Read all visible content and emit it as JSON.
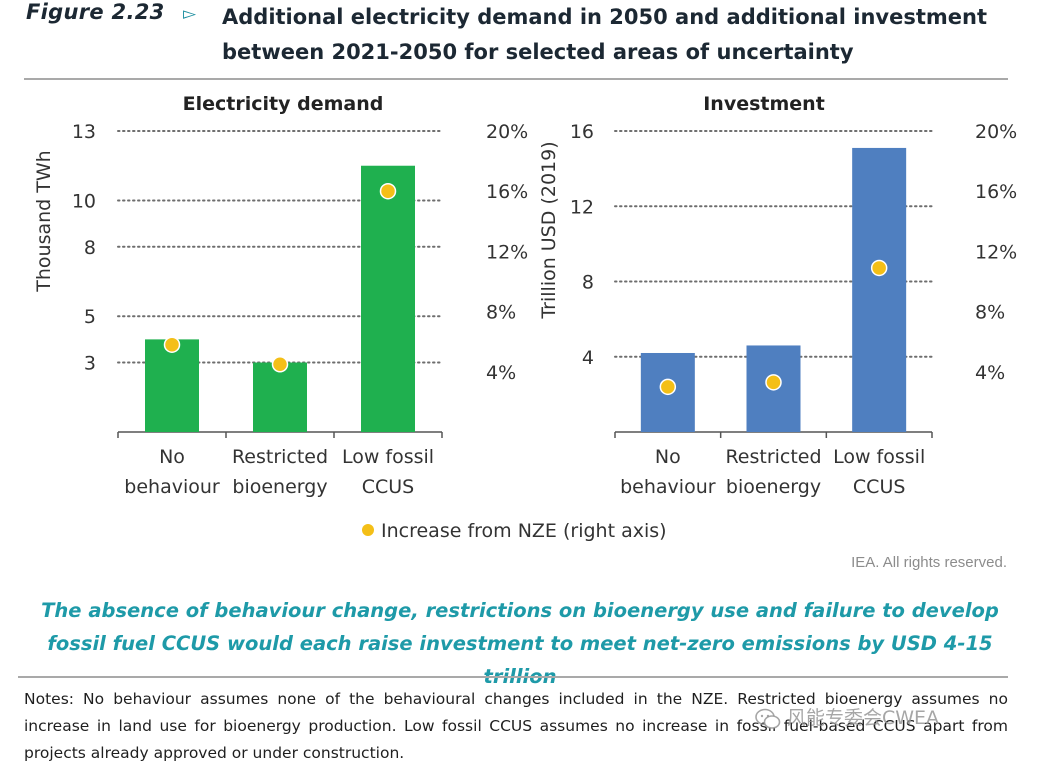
{
  "figure": {
    "label": "Figure 2.23",
    "arrow_icon": "triangle-right-outline",
    "title": "Additional electricity demand in 2050 and additional investment between 2021-2050 for selected areas of uncertainty"
  },
  "chart_data": [
    {
      "type": "bar",
      "title": "Electricity demand",
      "ylabel": "Thousand TWh",
      "categories": [
        "No behaviour",
        "Restricted bioenergy",
        "Low fossil CCUS"
      ],
      "category_lines": [
        [
          "No",
          "behaviour"
        ],
        [
          "Restricted",
          "bioenergy"
        ],
        [
          "Low fossil",
          "CCUS"
        ]
      ],
      "series": [
        {
          "name": "",
          "axis": "left",
          "values": [
            4.0,
            3.0,
            11.5
          ],
          "color": "#1fb04f"
        },
        {
          "name": "Increase from NZE (right axis)",
          "axis": "right",
          "kind": "point",
          "values": [
            0.058,
            0.045,
            0.16
          ],
          "color": "#f4bf17"
        }
      ],
      "ylim": [
        0,
        13
      ],
      "yticks": [
        3,
        5,
        8,
        10,
        13
      ],
      "ytick_labels": [
        "3",
        "5",
        "8",
        "10",
        "13"
      ],
      "y2lim": [
        0,
        0.2
      ],
      "y2ticks": [
        0.04,
        0.08,
        0.12,
        0.16,
        0.2
      ],
      "y2tick_labels": [
        "4%",
        "8%",
        "12%",
        "16%",
        "20%"
      ],
      "grid": "dotted-horizontal"
    },
    {
      "type": "bar",
      "title": "Investment",
      "ylabel": "Trillion USD (2019)",
      "categories": [
        "No behaviour",
        "Restricted bioenergy",
        "Low fossil CCUS"
      ],
      "category_lines": [
        [
          "No",
          "behaviour"
        ],
        [
          "Restricted",
          "bioenergy"
        ],
        [
          "Low fossil",
          "CCUS"
        ]
      ],
      "series": [
        {
          "name": "",
          "axis": "left",
          "values": [
            4.2,
            4.6,
            15.1
          ],
          "color": "#4f7fc0"
        },
        {
          "name": "Increase from NZE (right axis)",
          "axis": "right",
          "kind": "point",
          "values": [
            0.03,
            0.033,
            0.109
          ],
          "color": "#f4bf17"
        }
      ],
      "ylim": [
        0,
        16
      ],
      "yticks": [
        4,
        8,
        12,
        16
      ],
      "ytick_labels": [
        "4",
        "8",
        "12",
        "16"
      ],
      "y2lim": [
        0,
        0.2
      ],
      "y2ticks": [
        0.04,
        0.08,
        0.12,
        0.16,
        0.2
      ],
      "y2tick_labels": [
        "4%",
        "8%",
        "12%",
        "16%",
        "20%"
      ],
      "grid": "dotted-horizontal"
    }
  ],
  "legend": {
    "label": "Increase from NZE (right axis)",
    "color": "#f4bf17",
    "placement": "bottom-center"
  },
  "copyright": "IEA. All rights reserved.",
  "caption": {
    "line1": "The absence of behaviour change, restrictions on bioenergy use and failure to develop",
    "line2": "fossil fuel CCUS would each raise investment to meet net-zero emissions by USD 4-15 trillion"
  },
  "notes": "Notes: No behaviour assumes none of the behavioural changes included in the NZE. Restricted bioenergy assumes no increase in land use for bioenergy production. Low fossil CCUS assumes no increase in fossil fuel-based CCUS apart from projects already approved or under construction.",
  "watermark": {
    "text": "风能专委会CWEA",
    "icon": "wechat-icon"
  },
  "colors": {
    "accent": "#1e9aa8",
    "bar_green": "#1fb04f",
    "bar_blue": "#4f7fc0",
    "marker": "#f4bf17"
  }
}
